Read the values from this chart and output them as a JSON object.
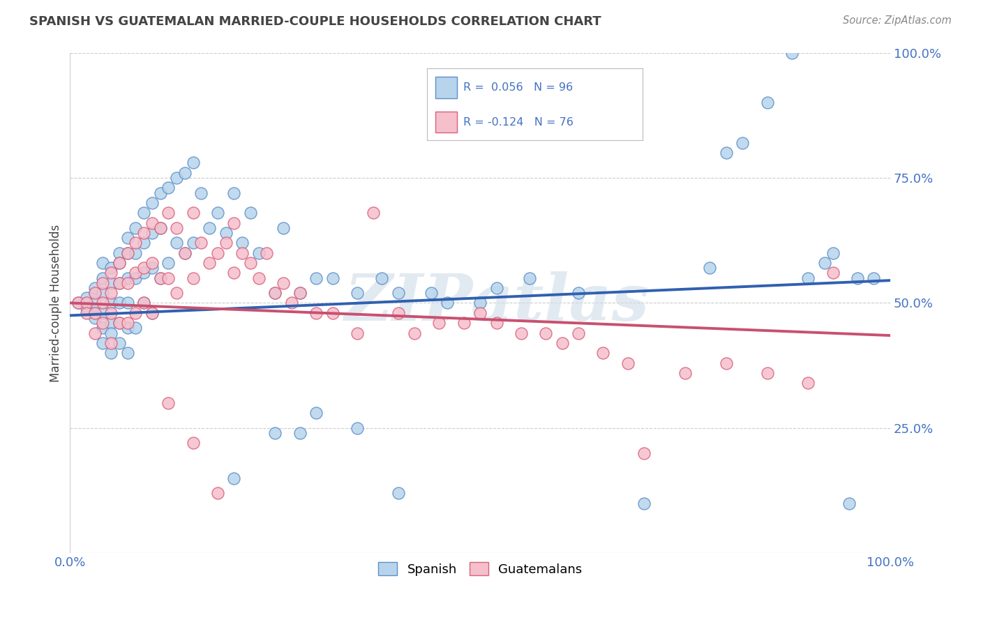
{
  "title": "SPANISH VS GUATEMALAN MARRIED-COUPLE HOUSEHOLDS CORRELATION CHART",
  "source": "Source: ZipAtlas.com",
  "ylabel": "Married-couple Households",
  "legend_label1": "Spanish",
  "legend_label2": "Guatemalans",
  "legend_r1": "R =  0.056",
  "legend_n1": "N = 96",
  "legend_r2": "R = -0.124",
  "legend_n2": "N = 76",
  "watermark": "ZIPatlas",
  "blue_scatter_color": "#b8d4ec",
  "blue_edge_color": "#5b8fc9",
  "pink_scatter_color": "#f5bfcc",
  "pink_edge_color": "#d9607a",
  "blue_line_color": "#3060b0",
  "pink_line_color": "#c85070",
  "background": "#ffffff",
  "grid_color": "#cccccc",
  "title_color": "#444444",
  "source_color": "#888888",
  "axis_label_color": "#4472c4",
  "xlim": [
    0,
    1
  ],
  "ylim": [
    0,
    1
  ],
  "blue_line_y0": 0.475,
  "blue_line_y1": 0.545,
  "pink_line_y0": 0.5,
  "pink_line_y1": 0.435,
  "blue_scatter_x": [
    0.01,
    0.02,
    0.02,
    0.02,
    0.03,
    0.03,
    0.03,
    0.03,
    0.03,
    0.04,
    0.04,
    0.04,
    0.04,
    0.04,
    0.04,
    0.05,
    0.05,
    0.05,
    0.05,
    0.05,
    0.05,
    0.06,
    0.06,
    0.06,
    0.06,
    0.06,
    0.06,
    0.07,
    0.07,
    0.07,
    0.07,
    0.07,
    0.07,
    0.08,
    0.08,
    0.08,
    0.08,
    0.09,
    0.09,
    0.09,
    0.09,
    0.1,
    0.1,
    0.1,
    0.1,
    0.11,
    0.11,
    0.11,
    0.12,
    0.12,
    0.13,
    0.13,
    0.14,
    0.14,
    0.15,
    0.15,
    0.16,
    0.17,
    0.18,
    0.19,
    0.2,
    0.21,
    0.22,
    0.23,
    0.25,
    0.26,
    0.28,
    0.3,
    0.32,
    0.35,
    0.38,
    0.4,
    0.44,
    0.46,
    0.5,
    0.52,
    0.56,
    0.62,
    0.7,
    0.78,
    0.8,
    0.82,
    0.85,
    0.88,
    0.9,
    0.92,
    0.93,
    0.95,
    0.96,
    0.98,
    0.2,
    0.25,
    0.28,
    0.3,
    0.35,
    0.4
  ],
  "blue_scatter_y": [
    0.5,
    0.5,
    0.51,
    0.49,
    0.52,
    0.5,
    0.48,
    0.47,
    0.53,
    0.55,
    0.52,
    0.48,
    0.45,
    0.42,
    0.58,
    0.57,
    0.54,
    0.5,
    0.46,
    0.44,
    0.4,
    0.6,
    0.58,
    0.54,
    0.5,
    0.46,
    0.42,
    0.63,
    0.6,
    0.55,
    0.5,
    0.45,
    0.4,
    0.65,
    0.6,
    0.55,
    0.45,
    0.68,
    0.62,
    0.56,
    0.5,
    0.7,
    0.64,
    0.57,
    0.48,
    0.72,
    0.65,
    0.55,
    0.73,
    0.58,
    0.75,
    0.62,
    0.76,
    0.6,
    0.78,
    0.62,
    0.72,
    0.65,
    0.68,
    0.64,
    0.72,
    0.62,
    0.68,
    0.6,
    0.52,
    0.65,
    0.52,
    0.55,
    0.55,
    0.52,
    0.55,
    0.52,
    0.52,
    0.5,
    0.5,
    0.53,
    0.55,
    0.52,
    0.1,
    0.57,
    0.8,
    0.82,
    0.9,
    1.0,
    0.55,
    0.58,
    0.6,
    0.1,
    0.55,
    0.55,
    0.15,
    0.24,
    0.24,
    0.28,
    0.25,
    0.12
  ],
  "pink_scatter_x": [
    0.01,
    0.02,
    0.02,
    0.03,
    0.03,
    0.03,
    0.04,
    0.04,
    0.04,
    0.05,
    0.05,
    0.05,
    0.05,
    0.06,
    0.06,
    0.06,
    0.07,
    0.07,
    0.07,
    0.08,
    0.08,
    0.08,
    0.09,
    0.09,
    0.09,
    0.1,
    0.1,
    0.1,
    0.11,
    0.11,
    0.12,
    0.12,
    0.13,
    0.13,
    0.14,
    0.15,
    0.15,
    0.16,
    0.17,
    0.18,
    0.19,
    0.2,
    0.2,
    0.21,
    0.22,
    0.23,
    0.24,
    0.25,
    0.26,
    0.27,
    0.28,
    0.3,
    0.32,
    0.35,
    0.37,
    0.4,
    0.42,
    0.45,
    0.48,
    0.5,
    0.52,
    0.55,
    0.58,
    0.6,
    0.62,
    0.65,
    0.68,
    0.7,
    0.75,
    0.8,
    0.85,
    0.9,
    0.93,
    0.12,
    0.15,
    0.18
  ],
  "pink_scatter_y": [
    0.5,
    0.5,
    0.48,
    0.52,
    0.48,
    0.44,
    0.54,
    0.5,
    0.46,
    0.56,
    0.52,
    0.48,
    0.42,
    0.58,
    0.54,
    0.46,
    0.6,
    0.54,
    0.46,
    0.62,
    0.56,
    0.48,
    0.64,
    0.57,
    0.5,
    0.66,
    0.58,
    0.48,
    0.65,
    0.55,
    0.68,
    0.55,
    0.65,
    0.52,
    0.6,
    0.68,
    0.55,
    0.62,
    0.58,
    0.6,
    0.62,
    0.66,
    0.56,
    0.6,
    0.58,
    0.55,
    0.6,
    0.52,
    0.54,
    0.5,
    0.52,
    0.48,
    0.48,
    0.44,
    0.68,
    0.48,
    0.44,
    0.46,
    0.46,
    0.48,
    0.46,
    0.44,
    0.44,
    0.42,
    0.44,
    0.4,
    0.38,
    0.2,
    0.36,
    0.38,
    0.36,
    0.34,
    0.56,
    0.3,
    0.22,
    0.12
  ]
}
